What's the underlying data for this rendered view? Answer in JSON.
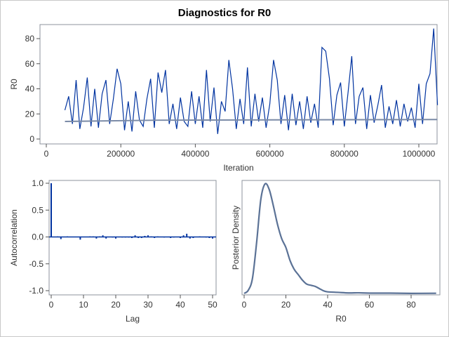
{
  "title": "Diagnostics for R0",
  "chart_data": [
    {
      "type": "line",
      "panel": "trace",
      "xlabel": "Iteration",
      "ylabel": "R0",
      "xlim": [
        0,
        1050000
      ],
      "ylim": [
        0,
        90
      ],
      "xticks": [
        0,
        200000,
        400000,
        600000,
        800000,
        1000000
      ],
      "yticks": [
        0,
        20,
        40,
        60,
        80
      ],
      "line_color": "#0033a0",
      "mean_color": "#7a8aa6",
      "x_start": 50000,
      "x_step": 10000,
      "values": [
        23,
        34,
        12,
        47,
        8,
        25,
        49,
        10,
        40,
        9,
        36,
        47,
        12,
        32,
        56,
        44,
        7,
        30,
        6,
        38,
        15,
        10,
        32,
        48,
        9,
        53,
        37,
        55,
        12,
        28,
        8,
        33,
        14,
        10,
        38,
        12,
        34,
        9,
        55,
        14,
        41,
        4,
        30,
        22,
        63,
        40,
        8,
        32,
        12,
        57,
        10,
        36,
        14,
        33,
        9,
        28,
        63,
        47,
        12,
        35,
        7,
        36,
        11,
        30,
        8,
        34,
        13,
        28,
        9,
        73,
        70,
        48,
        11,
        35,
        45,
        10,
        37,
        66,
        12,
        34,
        41,
        8,
        35,
        13,
        27,
        43,
        9,
        26,
        12,
        31,
        10,
        28,
        14,
        25,
        9,
        44,
        12,
        44,
        52,
        88,
        27
      ],
      "mean_line": [
        [
          50000,
          14
        ],
        [
          300000,
          15
        ],
        [
          700000,
          15.3
        ],
        [
          1050000,
          15.5
        ]
      ]
    },
    {
      "type": "bar",
      "panel": "autocorrelation",
      "xlabel": "Lag",
      "ylabel": "Autocorrelation",
      "xlim": [
        0,
        51
      ],
      "ylim": [
        -1.05,
        1.05
      ],
      "xticks": [
        0,
        10,
        20,
        30,
        40,
        50
      ],
      "yticks": [
        -1.0,
        -0.5,
        0.0,
        0.5,
        1.0
      ],
      "ytick_labels": [
        "-1.0",
        "-0.5",
        "0.0",
        "0.5",
        "1.0"
      ],
      "bar_color": "#0033a0",
      "lags": [
        0,
        1,
        2,
        3,
        4,
        5,
        6,
        7,
        8,
        9,
        10,
        11,
        12,
        13,
        14,
        15,
        16,
        17,
        18,
        19,
        20,
        21,
        22,
        23,
        24,
        25,
        26,
        27,
        28,
        29,
        30,
        31,
        32,
        33,
        34,
        35,
        36,
        37,
        38,
        39,
        40,
        41,
        42,
        43,
        44,
        45,
        46,
        47,
        48,
        49,
        50
      ],
      "values": [
        1.0,
        0.0,
        0.01,
        -0.04,
        0,
        0.01,
        0,
        0,
        0,
        -0.05,
        0,
        0,
        0.01,
        0.01,
        -0.03,
        0.01,
        0.03,
        -0.03,
        0,
        -0.01,
        -0.03,
        0,
        -0.01,
        -0.01,
        -0.01,
        -0.02,
        0.03,
        -0.02,
        -0.02,
        0.02,
        0.03,
        0.01,
        -0.02,
        0.01,
        0,
        -0.01,
        0,
        -0.02,
        -0.01,
        0,
        -0.02,
        0.03,
        0.06,
        -0.03,
        -0.02,
        0,
        0.01,
        0,
        -0.01,
        -0.02,
        -0.03
      ]
    },
    {
      "type": "line",
      "panel": "density",
      "xlabel": "R0",
      "ylabel": "Posterior Density",
      "xlim": [
        0,
        92
      ],
      "xticks": [
        0,
        20,
        40,
        60,
        80
      ],
      "line_color": "#5b7296",
      "x": [
        0,
        2,
        4,
        6,
        8,
        10,
        12,
        14,
        16,
        18,
        20,
        22,
        24,
        26,
        28,
        30,
        32,
        34,
        36,
        38,
        40,
        45,
        50,
        55,
        60,
        70,
        80,
        92
      ],
      "y": [
        0.0,
        0.03,
        0.14,
        0.47,
        0.86,
        1.0,
        0.95,
        0.8,
        0.63,
        0.5,
        0.42,
        0.3,
        0.22,
        0.17,
        0.12,
        0.085,
        0.075,
        0.065,
        0.045,
        0.025,
        0.015,
        0.01,
        0.005,
        0.006,
        0.003,
        0.003,
        0.001,
        0.002
      ]
    }
  ]
}
